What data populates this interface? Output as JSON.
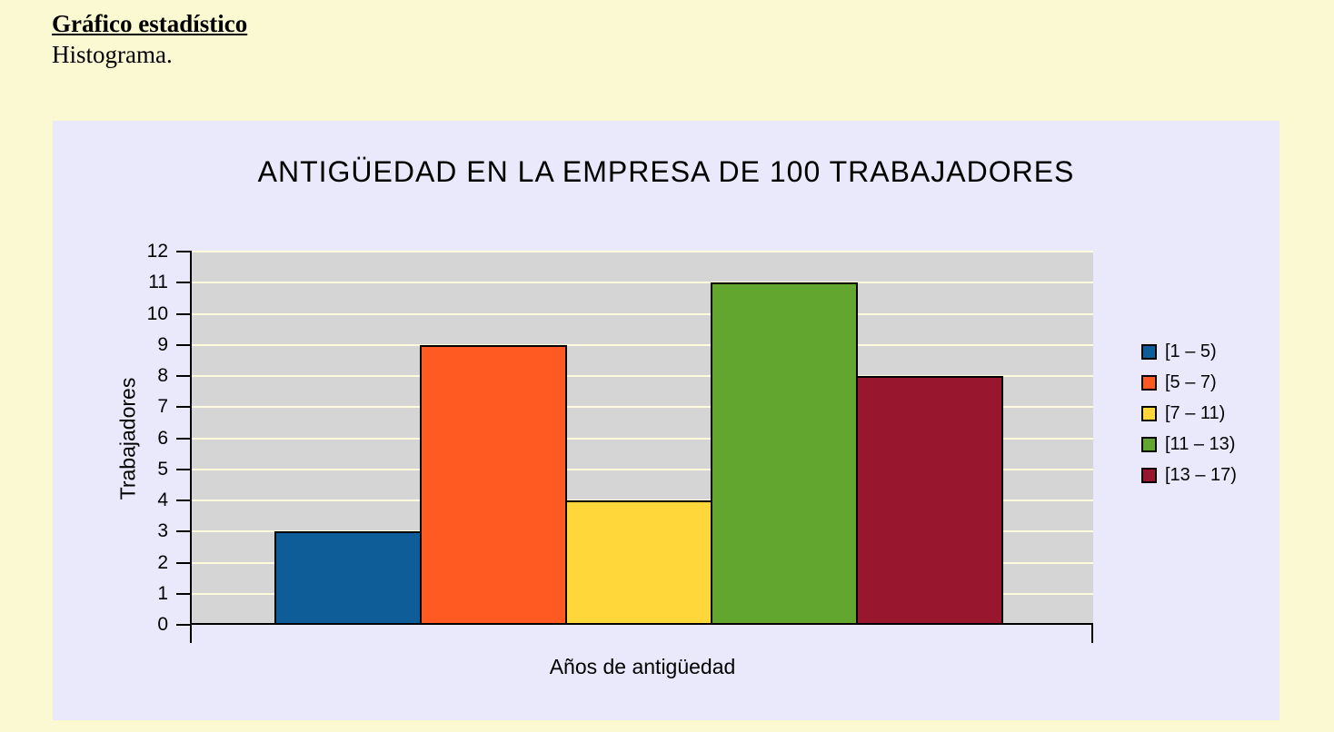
{
  "header": {
    "title": "Gráfico estadístico",
    "subtitle": "Histograma."
  },
  "chart_data": {
    "type": "bar",
    "title": "ANTIGÜEDAD EN LA EMPRESA DE 100 TRABAJADORES",
    "categories": [
      "[1 – 5)",
      "[5 – 7)",
      "[7 – 11)",
      "[11 – 13)",
      "[13 – 17)"
    ],
    "values": [
      3,
      9,
      4,
      11,
      8
    ],
    "colors": [
      "#0E5D99",
      "#FF5A22",
      "#FFD73B",
      "#62A62F",
      "#99162F"
    ],
    "xlabel": "Años de antigüedad",
    "ylabel": "Trabajadores",
    "ylim": [
      0,
      12
    ],
    "yticks": [
      0,
      1,
      2,
      3,
      4,
      5,
      6,
      7,
      8,
      9,
      10,
      11,
      12
    ],
    "grid": true,
    "legend_position": "right",
    "colors_ui": {
      "page_background": "#FAF9D2",
      "panel_background": "#E9E9FB",
      "plot_background": "#D5D5D5",
      "gridline": "#FFFCDC",
      "axis": "#000000",
      "text": "#000000"
    }
  }
}
